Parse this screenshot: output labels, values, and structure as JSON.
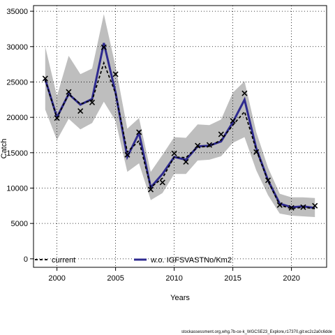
{
  "chart_data": {
    "type": "line",
    "xlabel": "Years",
    "ylabel": "Catch",
    "xlim": [
      1998,
      2023
    ],
    "ylim": [
      -1200,
      35800
    ],
    "x_ticks": [
      2000,
      2005,
      2010,
      2015,
      2020
    ],
    "y_ticks": [
      0,
      5000,
      10000,
      15000,
      20000,
      25000,
      30000,
      35000
    ],
    "grid": true,
    "legend_placement": "bottom",
    "x": [
      1999,
      2000,
      2001,
      2002,
      2003,
      2004,
      2005,
      2006,
      2007,
      2008,
      2009,
      2010,
      2011,
      2012,
      2013,
      2014,
      2015,
      2016,
      2017,
      2018,
      2019,
      2020,
      2021,
      2022
    ],
    "series": [
      {
        "name": "current",
        "style": "dashed",
        "color": "#000000",
        "values": [
          25300,
          19900,
          23300,
          21900,
          22400,
          27700,
          23400,
          15100,
          16700,
          10100,
          11400,
          14400,
          14300,
          15800,
          15900,
          16800,
          18900,
          20800,
          15400,
          11000,
          7600,
          7100,
          7300,
          7100
        ]
      },
      {
        "name": "w.o. IGFSVASTNo/Km2",
        "style": "solid",
        "color": "#2e2a8f",
        "values": [
          25400,
          20000,
          23300,
          21800,
          22600,
          30500,
          23500,
          14400,
          17800,
          10100,
          12000,
          14400,
          14000,
          15900,
          16000,
          16600,
          19300,
          22500,
          15600,
          11100,
          7800,
          7300,
          7400,
          7200
        ]
      }
    ],
    "band": {
      "upper": [
        30000,
        23000,
        28700,
        26100,
        26900,
        34600,
        27200,
        18400,
        19900,
        12300,
        14700,
        17200,
        17100,
        19000,
        18900,
        19700,
        23500,
        25100,
        17900,
        12900,
        9200,
        8700,
        8700,
        8600
      ],
      "lower": [
        21100,
        16800,
        19800,
        18300,
        19200,
        22200,
        19500,
        12300,
        13500,
        8300,
        9300,
        12000,
        12000,
        13900,
        14000,
        14500,
        16400,
        17200,
        12500,
        9000,
        6400,
        6100,
        6000,
        5900
      ],
      "color": "#bebebe"
    },
    "observed": {
      "marker": "x",
      "values": [
        25500,
        19900,
        23600,
        20900,
        22100,
        29900,
        26100,
        14700,
        17900,
        9800,
        10800,
        14900,
        13700,
        16000,
        16100,
        17600,
        19500,
        23400,
        15100,
        11100,
        7600,
        7200,
        7300,
        7500
      ]
    }
  },
  "footer_text": "stockassessment.org,whg.7b-ce-k_WGCSE23_Explore,r17370,git:ec2c2a0c6dde"
}
